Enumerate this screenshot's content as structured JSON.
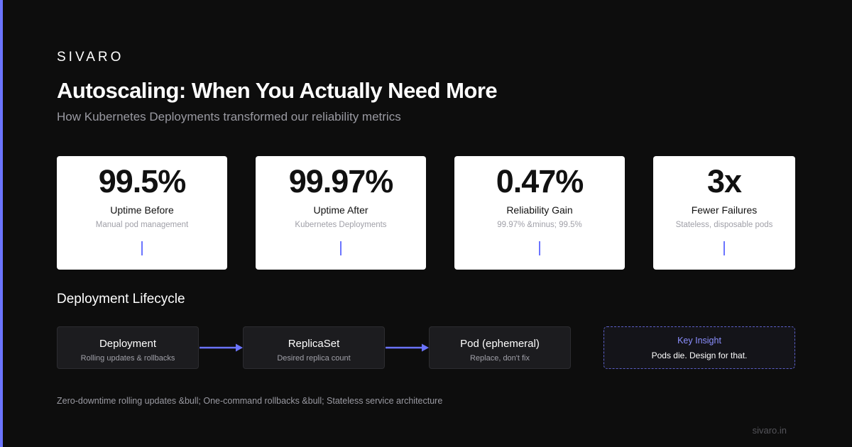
{
  "header": {
    "brand": "SIVARO",
    "title": "Autoscaling: When You Actually Need More",
    "subtitle": "How Kubernetes Deployments transformed our reliability metrics"
  },
  "metrics": [
    {
      "value": "99.5%",
      "label": "Uptime Before",
      "note": "Manual pod management"
    },
    {
      "value": "99.97%",
      "label": "Uptime After",
      "note": "Kubernetes Deployments"
    },
    {
      "value": "0.47%",
      "label": "Reliability Gain",
      "note": "99.97% &minus; 99.5%"
    },
    {
      "value": "3x",
      "label": "Fewer Failures",
      "note": "Stateless, disposable pods"
    }
  ],
  "lifecycle": {
    "title": "Deployment Lifecycle",
    "steps": [
      {
        "title": "Deployment",
        "note": "Rolling updates & rollbacks"
      },
      {
        "title": "ReplicaSet",
        "note": "Desired replica count"
      },
      {
        "title": "Pod (ephemeral)",
        "note": "Replace, don't fix"
      }
    ],
    "insight": {
      "title": "Key Insight",
      "text": "Pods die. Design for that."
    }
  },
  "footer": {
    "note": "Zero-downtime rolling updates &bull; One-command rollbacks &bull; Stateless service architecture",
    "site": "sivaro.in"
  }
}
